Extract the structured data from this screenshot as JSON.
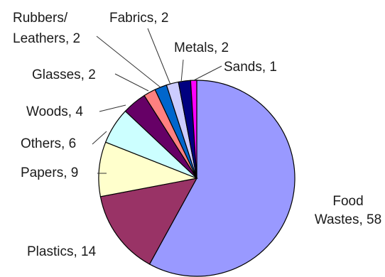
{
  "chart_data": {
    "type": "pie",
    "title": "",
    "slices": [
      {
        "name": "Food Wastes",
        "value": 58,
        "color": "#9999ff",
        "label_lines": [
          "Food",
          "Wastes, 58"
        ]
      },
      {
        "name": "Plastics",
        "value": 14,
        "color": "#993366",
        "label_lines": [
          "Plastics, 14"
        ]
      },
      {
        "name": "Papers",
        "value": 9,
        "color": "#ffffcc",
        "label_lines": [
          "Papers, 9"
        ]
      },
      {
        "name": "Others",
        "value": 6,
        "color": "#ccffff",
        "label_lines": [
          "Others, 6"
        ]
      },
      {
        "name": "Woods",
        "value": 4,
        "color": "#660066",
        "label_lines": [
          "Woods, 4"
        ]
      },
      {
        "name": "Glasses",
        "value": 2,
        "color": "#ff8080",
        "label_lines": [
          "Glasses, 2"
        ]
      },
      {
        "name": "Rubbers/ Leathers",
        "value": 2,
        "color": "#0066cc",
        "label_lines": [
          "Rubbers/",
          "Leathers, 2"
        ]
      },
      {
        "name": "Fabrics",
        "value": 2,
        "color": "#ccccff",
        "label_lines": [
          "Fabrics, 2"
        ]
      },
      {
        "name": "Metals",
        "value": 2,
        "color": "#000080",
        "label_lines": [
          "Metals, 2"
        ]
      },
      {
        "name": "Sands",
        "value": 1,
        "color": "#ff00ff",
        "label_lines": [
          "Sands, 1"
        ]
      }
    ],
    "legend": "none",
    "data_labels": "outside with leader lines"
  }
}
